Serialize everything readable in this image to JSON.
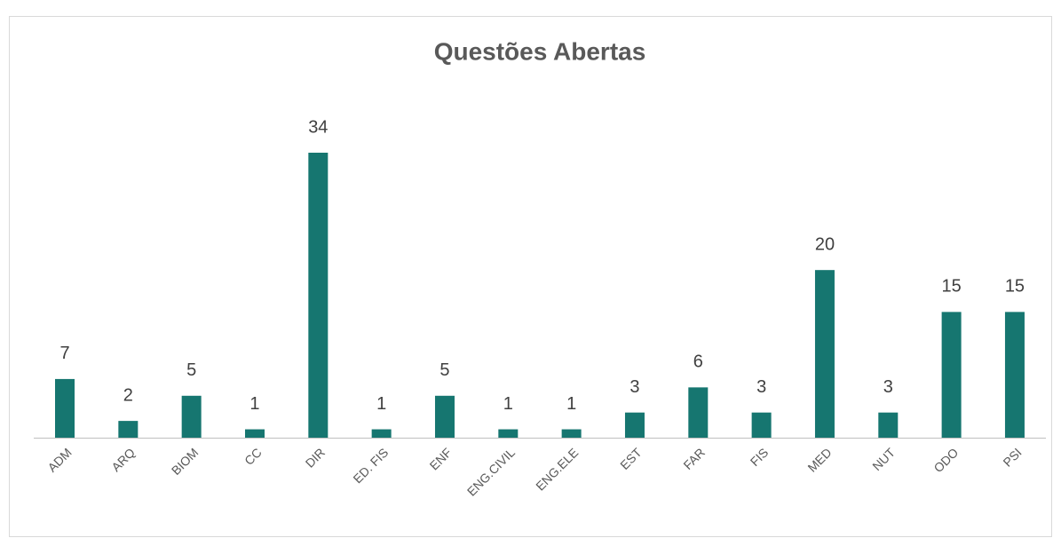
{
  "chart_data": {
    "type": "bar",
    "title": "Questões Abertas",
    "categories": [
      "ADM",
      "ARQ",
      "BIOM",
      "CC",
      "DIR",
      "ED. FIS",
      "ENF",
      "ENG.CIVIL",
      "ENG.ELE",
      "EST",
      "FAR",
      "FIS",
      "MED",
      "NUT",
      "ODO",
      "PSI"
    ],
    "values": [
      7,
      2,
      5,
      1,
      34,
      1,
      5,
      1,
      1,
      3,
      6,
      3,
      20,
      3,
      15,
      15
    ],
    "color": "#167670"
  }
}
